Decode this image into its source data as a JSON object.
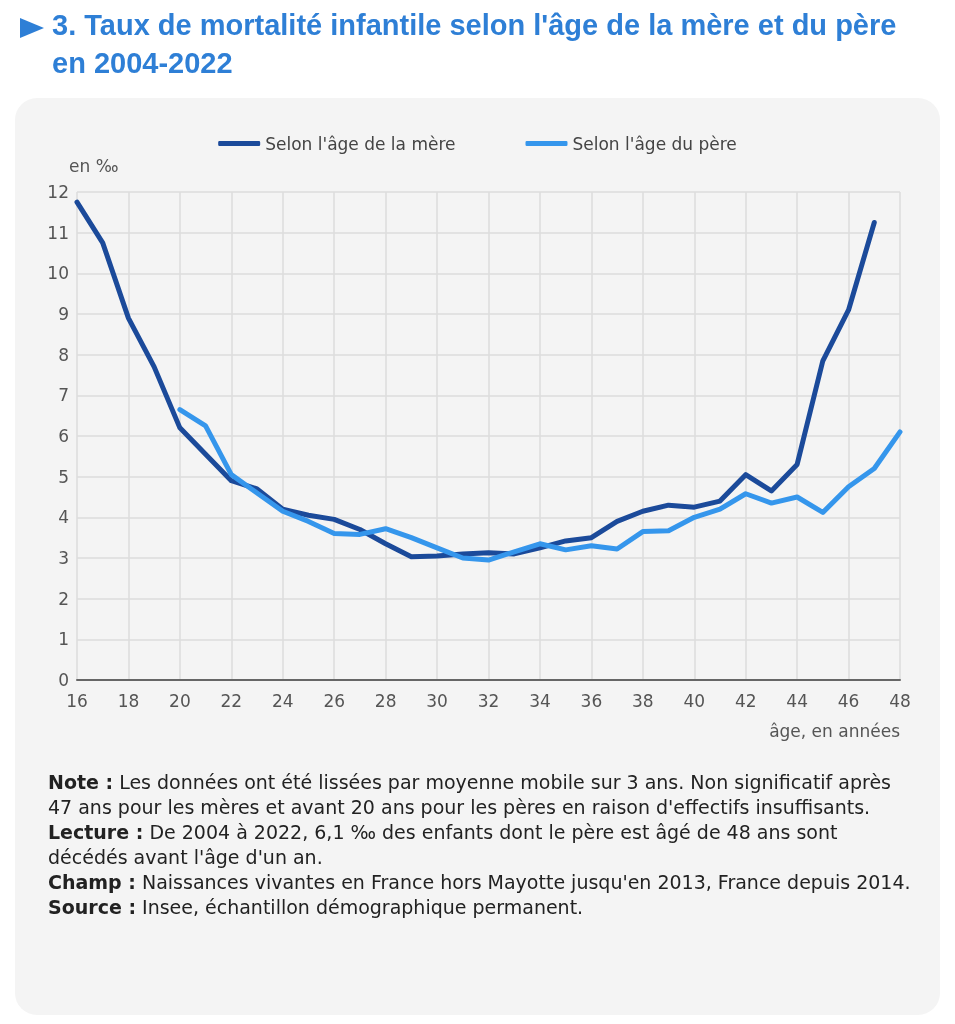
{
  "chart_data": {
    "type": "line",
    "title": "3. Taux de mortalité infantile selon l'âge de la mère et du père en 2004-2022",
    "xlabel": "âge, en années",
    "ylabel": "en ‰",
    "series": [
      {
        "name": "Selon l'âge de la mère",
        "color": "#1b4a9a",
        "x": [
          16,
          17,
          18,
          19,
          20,
          21,
          22,
          23,
          24,
          25,
          26,
          27,
          28,
          29,
          30,
          31,
          32,
          33,
          34,
          35,
          36,
          37,
          38,
          39,
          40,
          41,
          42,
          43,
          44,
          45,
          46,
          47
        ],
        "values": [
          11.75,
          10.75,
          8.9,
          7.7,
          6.2,
          5.55,
          4.9,
          4.7,
          4.2,
          4.05,
          3.95,
          3.7,
          3.35,
          3.03,
          3.05,
          3.1,
          3.13,
          3.1,
          3.25,
          3.42,
          3.5,
          3.9,
          4.15,
          4.3,
          4.25,
          4.4,
          5.05,
          4.65,
          5.3,
          7.85,
          9.1,
          11.25
        ]
      },
      {
        "name": "Selon l'âge du père",
        "color": "#3596ec",
        "x": [
          20,
          21,
          22,
          23,
          24,
          25,
          26,
          27,
          28,
          29,
          30,
          31,
          32,
          33,
          34,
          35,
          36,
          37,
          38,
          39,
          40,
          41,
          42,
          43,
          44,
          45,
          46,
          47,
          48
        ],
        "values": [
          6.65,
          6.25,
          5.05,
          4.6,
          4.15,
          3.9,
          3.6,
          3.58,
          3.72,
          3.5,
          3.25,
          3.0,
          2.95,
          3.15,
          3.35,
          3.2,
          3.3,
          3.22,
          3.65,
          3.67,
          4.0,
          4.2,
          4.58,
          4.35,
          4.5,
          4.12,
          4.75,
          5.2,
          6.1
        ]
      }
    ],
    "xlim": [
      16,
      48
    ],
    "xticks": [
      16,
      18,
      20,
      22,
      24,
      26,
      28,
      30,
      32,
      34,
      36,
      38,
      40,
      42,
      44,
      46,
      48
    ],
    "ylim": [
      0,
      12
    ],
    "yticks": [
      0,
      1,
      2,
      3,
      4,
      5,
      6,
      7,
      8,
      9,
      10,
      11,
      12
    ],
    "grid": true,
    "legend": "top",
    "marker": "none",
    "line_style": "solid",
    "annotations": [
      "Note : Les données ont été lissées par moyenne mobile sur 3 ans. Non significatif après 47 ans pour les mères et avant 20 ans pour les pères en raison d'effectifs insuffisants.",
      "Lecture : De 2004 à 2022, 6,1 ‰ des enfants dont le père est âgé de 48 ans sont décédés avant l'âge d'un an.",
      "Champ : Naissances vivantes en France hors Mayotte jusqu'en 2013, France depuis 2014.",
      "Source : Insee, échantillon démographique permanent."
    ]
  }
}
